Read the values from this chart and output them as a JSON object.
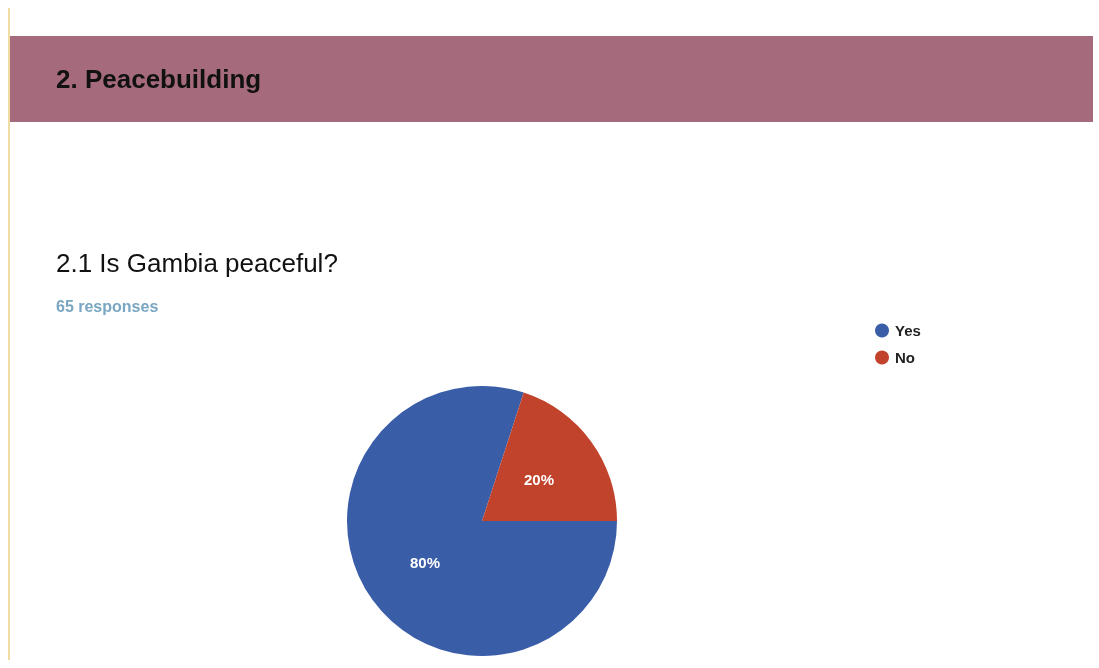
{
  "chart_data": {
    "type": "pie",
    "title": "2. Peacebuilding",
    "subtitle": "2.1 Is Gambia peaceful?",
    "annotations": [
      "65 responses"
    ],
    "categories": [
      "Yes",
      "No"
    ],
    "values": [
      80,
      20
    ],
    "colors": [
      "#3a5da8",
      "#c2432c"
    ],
    "value_labels": [
      "80%",
      "20%"
    ],
    "legend": "top right"
  }
}
